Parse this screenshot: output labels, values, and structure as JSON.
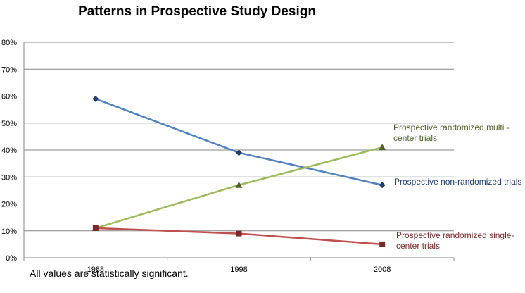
{
  "chart_data": {
    "type": "line",
    "title": "Patterns in Prospective Study Design",
    "categories": [
      "1988",
      "1998",
      "2008"
    ],
    "ylim": [
      0,
      80
    ],
    "yticks": [
      "0%",
      "10%",
      "20%",
      "30%",
      "40%",
      "50%",
      "60%",
      "70%",
      "80%"
    ],
    "grid": true,
    "xlabel": "",
    "ylabel": "",
    "series": [
      {
        "name": "Prospective non-randomized trials",
        "label_lines": [
          "Prospective non-randomized trials"
        ],
        "values": [
          59,
          39,
          27
        ],
        "color": "#4F81BD",
        "marker_color": "#1F3D6E",
        "marker": "diamond"
      },
      {
        "name": "Prospective randomized multi-center trials",
        "label_lines": [
          "Prospective randomized multi -",
          "center trials"
        ],
        "values": [
          11,
          27,
          41
        ],
        "color": "#9BBB59",
        "marker_color": "#4F6228",
        "marker": "triangle"
      },
      {
        "name": "Prospective randomized single-center trials",
        "label_lines": [
          "Prospective randomized single-",
          "center trials"
        ],
        "values": [
          11,
          9,
          5
        ],
        "color": "#C0504D",
        "marker_color": "#772C2A",
        "marker": "square"
      }
    ],
    "footnote": "All values are statistically significant."
  }
}
